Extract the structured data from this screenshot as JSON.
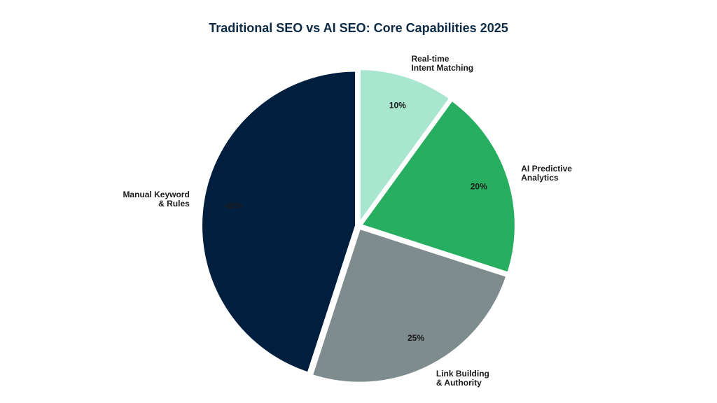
{
  "chart_data": {
    "type": "pie",
    "title": "Traditional SEO vs AI SEO: Core Capabilities 2025",
    "categories": [
      "Real-time\nIntent Matching",
      "AI Predictive\nAnalytics",
      "Link Building\n& Authority",
      "Manual Keyword\n& Rules"
    ],
    "values": [
      10,
      20,
      25,
      45
    ],
    "value_labels": [
      "10%",
      "20%",
      "25%",
      "45%"
    ],
    "colors": [
      "#a8e6cf",
      "#27ae60",
      "#7f8c8d",
      "#001f3f"
    ]
  }
}
